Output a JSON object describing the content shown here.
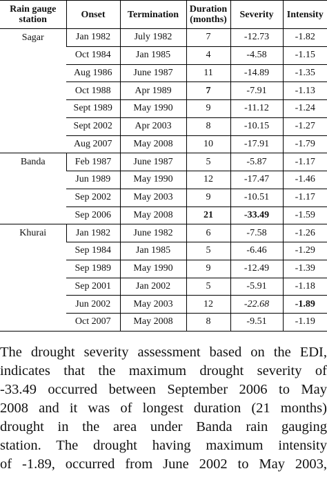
{
  "table": {
    "headers": [
      "Rain gauge station",
      "Onset",
      "Termination",
      "Duration (months)",
      "Severity",
      "Intensity"
    ],
    "groups": [
      {
        "station": "Sagar",
        "rows": [
          {
            "onset": "Jan 1982",
            "termination": "July 1982",
            "duration": "7",
            "severity": "-12.73",
            "intensity": "-1.82"
          },
          {
            "onset": "Oct 1984",
            "termination": "Jan 1985",
            "duration": "4",
            "severity": "-4.58",
            "intensity": "-1.15"
          },
          {
            "onset": "Aug 1986",
            "termination": "June 1987",
            "duration": "11",
            "severity": "-14.89",
            "intensity": "-1.35"
          },
          {
            "onset": "Oct 1988",
            "termination": "Apr 1989",
            "duration": "7",
            "severity": "-7.91",
            "intensity": "-1.13"
          },
          {
            "onset": "Sept 1989",
            "termination": "May 1990",
            "duration": "9",
            "severity": "-11.12",
            "intensity": "-1.24"
          },
          {
            "onset": "Sept 2002",
            "termination": "Apr 2003",
            "duration": "8",
            "severity": "-10.15",
            "intensity": "-1.27"
          },
          {
            "onset": "Aug 2007",
            "termination": "May 2008",
            "duration": "10",
            "severity": "-17.91",
            "intensity": "-1.79"
          }
        ]
      },
      {
        "station": "Banda",
        "rows": [
          {
            "onset": "Feb 1987",
            "termination": "June 1987",
            "duration": "5",
            "severity": "-5.87",
            "intensity": "-1.17"
          },
          {
            "onset": "Jun 1989",
            "termination": "May 1990",
            "duration": "12",
            "severity": "-17.47",
            "intensity": "-1.46"
          },
          {
            "onset": "Sep 2002",
            "termination": "May 2003",
            "duration": "9",
            "severity": "-10.51",
            "intensity": "-1.17"
          },
          {
            "onset": "Sep 2006",
            "termination": "May 2008",
            "duration": "21",
            "severity": "-33.49",
            "intensity": "-1.59"
          }
        ]
      },
      {
        "station": "Khurai",
        "rows": [
          {
            "onset": "Jan 1982",
            "termination": "June 1982",
            "duration": "6",
            "severity": "-7.58",
            "intensity": "-1.26"
          },
          {
            "onset": "Sep 1984",
            "termination": "Jan 1985",
            "duration": "5",
            "severity": "-6.46",
            "intensity": "-1.29"
          },
          {
            "onset": "Sep 1989",
            "termination": "May 1990",
            "duration": "9",
            "severity": "-12.49",
            "intensity": "-1.39"
          },
          {
            "onset": "Sep 2001",
            "termination": "Jan 2002",
            "duration": "5",
            "severity": "-5.91",
            "intensity": "-1.18"
          },
          {
            "onset": "Jun 2002",
            "termination": "May 2003",
            "duration": "12",
            "severity": "-22.68",
            "intensity": "-1.89"
          },
          {
            "onset": "Oct 2007",
            "termination": "May 2008",
            "duration": "8",
            "severity": "-9.51",
            "intensity": "-1.19"
          }
        ]
      }
    ]
  },
  "paragraph": {
    "lines": [
      "The drought severity assessment based on the EDI,",
      "indicates that the maximum drought severity of",
      "-33.49 occurred between September 2006 to May",
      "2008 and it was of longest duration (21 months)",
      "drought in the area under Banda rain gauging",
      "station. The drought having maximum intensity",
      "of -1.89, occurred from June 2002 to May 2003,"
    ]
  }
}
